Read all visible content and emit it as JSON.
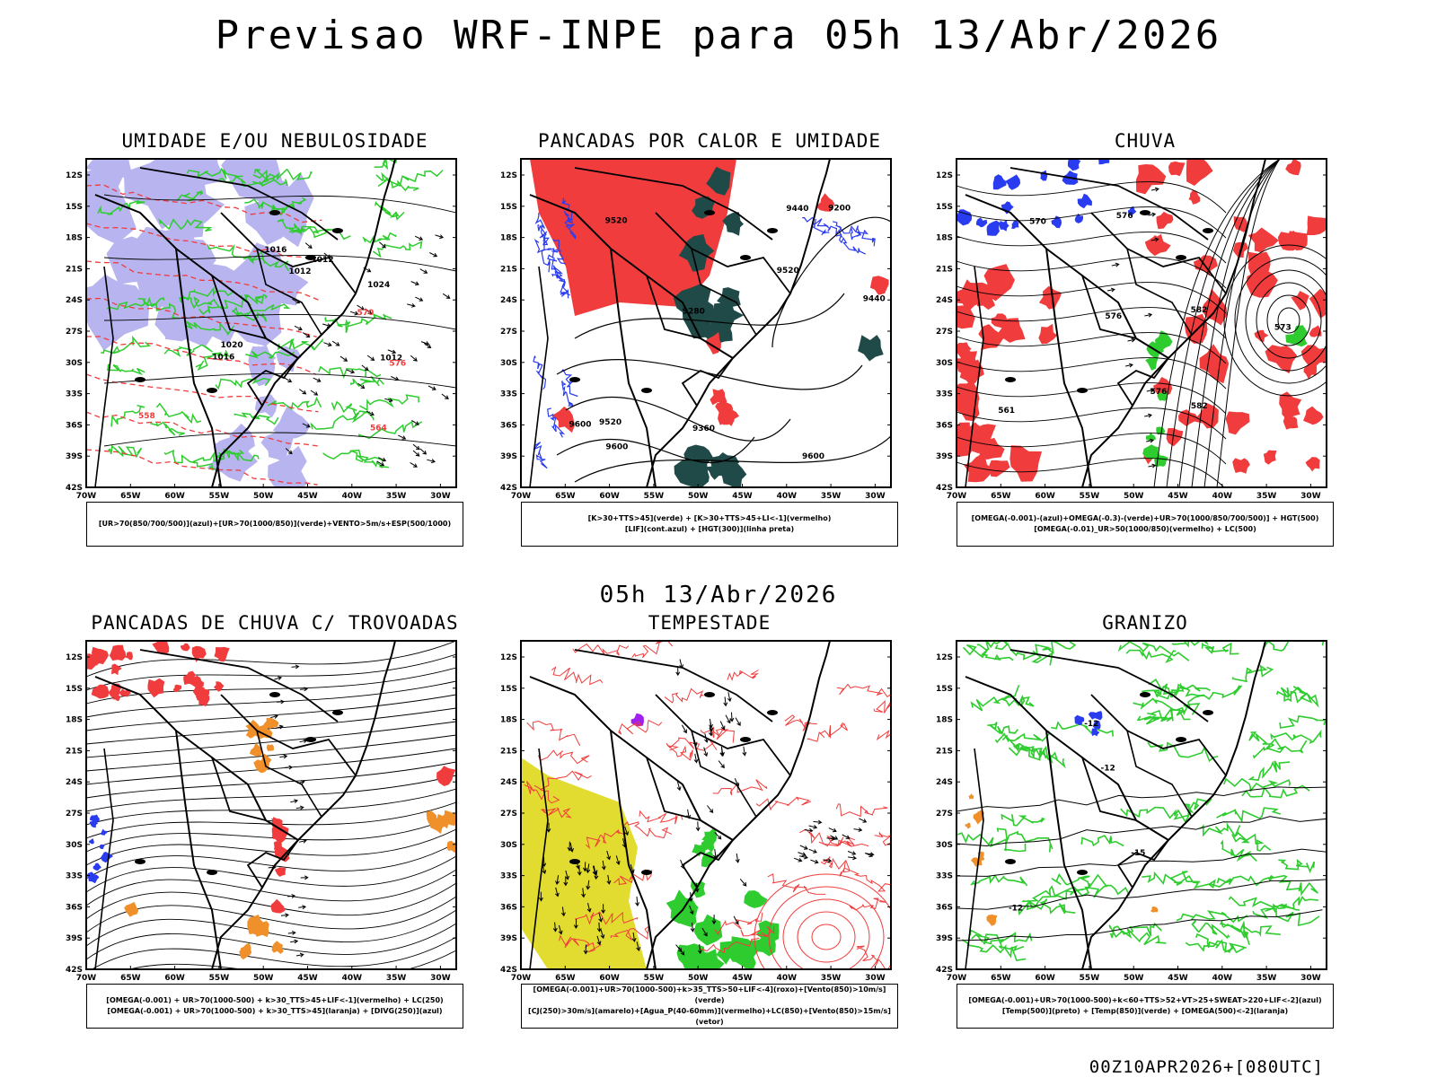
{
  "header": {
    "title": "Previsao WRF-INPE  para 05h 13/Abr/2026",
    "mid_date": "05h 13/Abr/2026",
    "run_stamp": "00Z10APR2026+[080UTC]"
  },
  "axes": {
    "lat_labels": [
      "12S",
      "15S",
      "18S",
      "21S",
      "24S",
      "27S",
      "30S",
      "33S",
      "36S",
      "39S",
      "42S"
    ],
    "lon_labels": [
      "70W",
      "65W",
      "60W",
      "55W",
      "50W",
      "45W",
      "40W",
      "35W",
      "30W"
    ]
  },
  "panels": [
    {
      "id": "umidade",
      "title": "UMIDADE E/OU NEBULOSIDADE",
      "legend": [
        "[UR>70(850/700/500)](azul)+[UR>70(1000/850)](verde)+VENTO>5m/s+ESP(500/1000)"
      ],
      "contour_labels": [
        "1012",
        "1012",
        "1012",
        "1016",
        "1016",
        "1020",
        "1024",
        "576",
        "570",
        "564",
        "558"
      ]
    },
    {
      "id": "pancadas-calor",
      "title": "PANCADAS POR CALOR E UMIDADE",
      "legend": [
        "[K>30+TTS>45](verde) + [K>30+TTS>45+LI<-1](vermelho)",
        "[LIF](cont.azul) + [HGT(300)](linha preta)"
      ],
      "contour_labels": [
        "9600",
        "9600",
        "9600",
        "9520",
        "9520",
        "9520",
        "9440",
        "9440",
        "9360",
        "9280",
        "9200"
      ]
    },
    {
      "id": "chuva",
      "title": "CHUVA",
      "legend": [
        "[OMEGA(-0.001)-(azul)+OMEGA(-0.3)-(verde)+UR>70(1000/850/700/500)] + HGT(500)",
        "[OMEGA(-0.01)_UR>50(1000/850)(vermelho) + LC(500)"
      ],
      "contour_labels": [
        "582",
        "582",
        "576",
        "576",
        "573",
        "570",
        "561",
        "576"
      ]
    },
    {
      "id": "pancadas-trovoadas",
      "title": "PANCADAS DE CHUVA C/ TROVOADAS",
      "legend": [
        "[OMEGA(-0.001) + UR>70(1000-500) + k>30_TTS>45+LIF<-1](vermelho) + LC(250)",
        "[OMEGA(-0.001) + UR>70(1000-500) + k>30_TTS>45](laranja) + [DIVG(250)](azul)"
      ],
      "contour_labels": []
    },
    {
      "id": "tempestade",
      "title": "TEMPESTADE",
      "legend": [
        "[OMEGA(-0.001)+UR>70(1000-500)+k>35_TTS>50+LIF<-4](roxo)+[Vento(850)>10m/s](verde)",
        "[CJ(250)>30m/s](amarelo)+[Agua_P(40-60mm)](vermelho)+LC(850)+[Vento(850)>15m/s](vetor)"
      ],
      "contour_labels": []
    },
    {
      "id": "granizo",
      "title": "GRANIZO",
      "legend": [
        "[OMEGA(-0.001)+UR>70(1000-500)+k<60+TTS>52+VT>25+SWEAT>220+LIF<-2](azul)",
        "[Temp(500)](preto) + [Temp(850)](verde) + [OMEGA(500)<-2](laranja)"
      ],
      "contour_labels": [
        "-12",
        "-12",
        "-15",
        "-12"
      ]
    }
  ],
  "colors": {
    "lavender": "#b8b4f0",
    "green": "#2fcc2f",
    "red": "#f03c3c",
    "dark_teal": "#1f4a48",
    "blue": "#2a3cf0",
    "orange": "#f0902a",
    "yellow": "#e2dc30",
    "purple": "#a020f0"
  }
}
